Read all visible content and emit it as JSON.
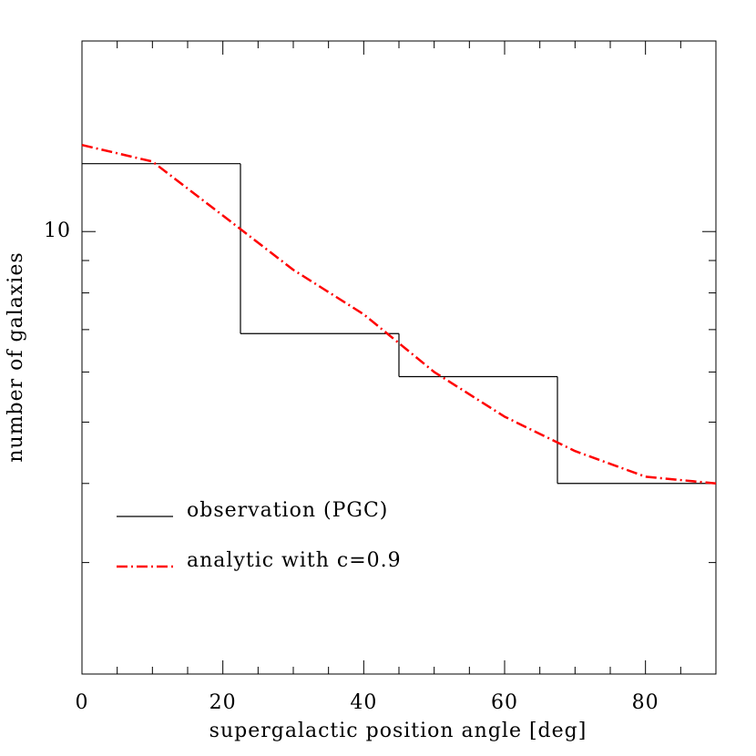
{
  "chart_data": {
    "type": "line",
    "x_label": "supergalactic position angle [deg]",
    "y_label": "number of galaxies",
    "xlim": [
      0,
      90
    ],
    "xticks": [
      0,
      20,
      40,
      60,
      80
    ],
    "x_minor_ticks": [
      5,
      10,
      15,
      25,
      30,
      35,
      45,
      50,
      55,
      65,
      70,
      75,
      85
    ],
    "ylim": [
      2,
      20
    ],
    "yscale": "log",
    "yticks": [
      10
    ],
    "y_minor_ticks": [
      3,
      4,
      5,
      6,
      7,
      8,
      9
    ],
    "series": [
      {
        "name": "observation (PGC)",
        "kind": "step",
        "color": "#000000",
        "bins": [
          0,
          22.5,
          45,
          67.5,
          90
        ],
        "values": [
          12.8,
          6.9,
          5.9,
          4.0
        ]
      },
      {
        "name": "analytic with c=0.9",
        "kind": "line",
        "color": "#ff0000",
        "x": [
          0,
          10,
          20,
          30,
          40,
          50,
          60,
          70,
          80,
          90
        ],
        "values": [
          13.7,
          12.9,
          10.6,
          8.7,
          7.4,
          6.0,
          5.1,
          4.5,
          4.1,
          4.0
        ]
      }
    ]
  }
}
